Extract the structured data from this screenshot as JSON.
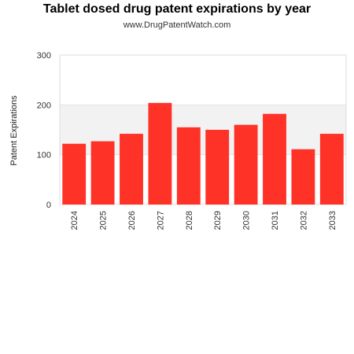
{
  "chart_data": {
    "type": "bar",
    "title": "Tablet dosed drug patent expirations by year",
    "subtitle": "www.DrugPatentWatch.com",
    "xlabel": "",
    "ylabel": "Patent Expirations",
    "categories": [
      "2024",
      "2025",
      "2026",
      "2027",
      "2028",
      "2029",
      "2030",
      "2031",
      "2032",
      "2033"
    ],
    "values": [
      122,
      127,
      142,
      204,
      155,
      150,
      160,
      182,
      111,
      142
    ],
    "ylim": [
      0,
      300
    ],
    "yticks": [
      0,
      100,
      200,
      300
    ],
    "bar_color": "#ff3228",
    "band_color": "#f2f2f2",
    "grid": true
  }
}
